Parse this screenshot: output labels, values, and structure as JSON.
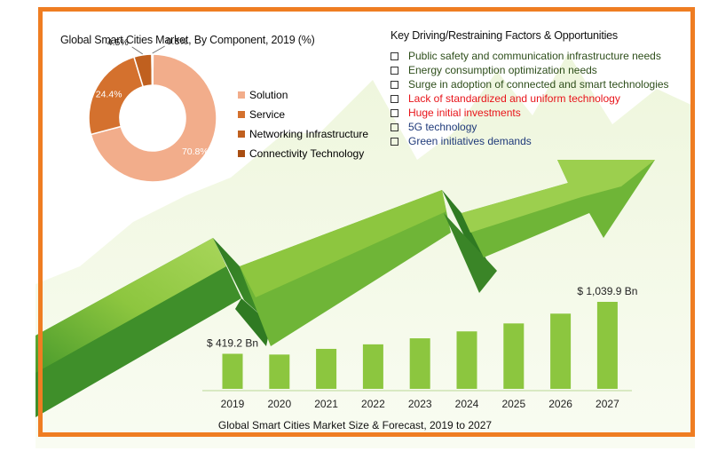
{
  "colors": {
    "frame": "#ef7d22",
    "positive": "#3a5a1f",
    "negative": "#e8141a",
    "neutral": "#1f3a7a",
    "bars": "#8cc63f",
    "arrow_light": "#8dc63f",
    "arrow_dark": "#3f8f2a"
  },
  "factors": {
    "title": "Key Driving/Restraining Factors & Opportunities",
    "items": [
      {
        "text": "Public safety and communication infrastructure needs",
        "type": "driver",
        "color": "#2e4e1b"
      },
      {
        "text": "Energy consumption optimization needs",
        "type": "driver",
        "color": "#2e4e1b"
      },
      {
        "text": "Surge in adoption of connected and smart technologies",
        "type": "driver",
        "color": "#2e4e1b"
      },
      {
        "text": "Lack of standardized and uniform technology",
        "type": "restraint",
        "color": "#e8141a"
      },
      {
        "text": "Huge initial investments",
        "type": "restraint",
        "color": "#e8141a"
      },
      {
        "text": "5G technology",
        "type": "opportunity",
        "color": "#1f3a7a"
      },
      {
        "text": "Green initiatives demands",
        "type": "opportunity",
        "color": "#1f3a7a"
      }
    ]
  },
  "chart_data": [
    {
      "type": "pie",
      "title": "Global Smart Cities Market, By Component, 2019 (%)",
      "labels": [
        "Solution",
        "Service",
        "Networking Infrastructure",
        "Connectivity Technology"
      ],
      "values": [
        70.8,
        24.4,
        4.5,
        0.3
      ],
      "value_labels": [
        "70.8%",
        "24.4%",
        "4.5%",
        "0.3%"
      ],
      "colors": [
        "#f2ad8b",
        "#d4712e",
        "#c0601f",
        "#a94e12"
      ],
      "legend": "right",
      "donut": true
    },
    {
      "type": "bar",
      "title": "Global Smart Cities Market Size & Forecast, 2019 to 2027",
      "categories": [
        "2019",
        "2020",
        "2021",
        "2022",
        "2023",
        "2024",
        "2025",
        "2026",
        "2027"
      ],
      "values": [
        419.2,
        410.0,
        478.0,
        532.0,
        604.0,
        687.0,
        782.0,
        899.0,
        1039.9
      ],
      "value_labels": {
        "2019": "$ 419.2 Bn",
        "2027": "$ 1,039.9 Bn"
      },
      "ylim": [
        0,
        1100
      ],
      "grid": false,
      "color": "#8cc63f"
    }
  ]
}
